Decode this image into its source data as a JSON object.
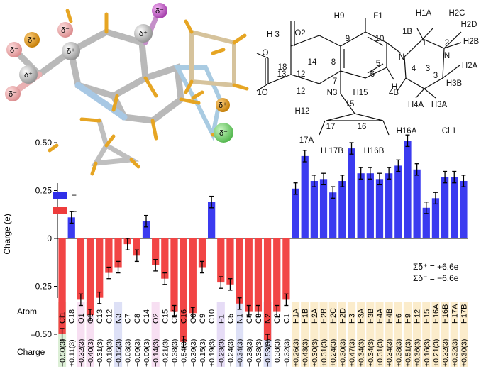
{
  "top_left": {
    "delta_labels": [
      "δ⁻",
      "δ⁻",
      "δ⁺",
      "δ⁺",
      "δ⁻",
      "δ⁺",
      "δ⁻",
      "δ⁺",
      "δ⁺",
      "δ⁻"
    ]
  },
  "scheme": {
    "atoms": [
      "O2",
      "H9",
      "F1",
      "H1A",
      "H2C",
      "H 3",
      "O",
      "14",
      "9",
      "10",
      "1B",
      "1",
      "2",
      "H2D",
      "3",
      "8",
      "N",
      "N",
      "H2B",
      "18",
      "13",
      "7",
      "5",
      "H2A",
      "1O",
      "6",
      "4",
      "3",
      "H3B",
      "12",
      "N3",
      "H15",
      "H",
      "12",
      "15",
      "4B",
      "H4A",
      "H3A",
      "H12",
      "17",
      "16",
      "17A",
      "H16A",
      "Cl 1",
      "H 17B",
      "H16B",
      "6"
    ],
    "charge_superscript": "+"
  },
  "chart_data": {
    "type": "bar",
    "ylabel": "Charge (e)",
    "ylim": [
      -0.6,
      0.6
    ],
    "yticks": [
      "0.50",
      "0.25",
      "0",
      "–0.25",
      "–0.50"
    ],
    "ytick_values": [
      0.5,
      0.25,
      0,
      -0.25,
      -0.5
    ],
    "legend": [
      {
        "label": "+",
        "color": "#2f2fe8"
      },
      {
        "label": "–",
        "color": "#ee3c3c"
      }
    ],
    "annotation": [
      "Σδ⁺ = +6.6e",
      "Σδ⁻ = −6.6e"
    ],
    "row_titles": {
      "atom": "Atom",
      "charge": "Charge"
    },
    "categories": [
      "Cl1",
      "C18",
      "O1",
      "O3",
      "C13",
      "C12",
      "N3",
      "C7",
      "C8",
      "C14",
      "O2",
      "C15",
      "C17",
      "C16",
      "C6",
      "C9",
      "C10",
      "F1",
      "C5",
      "N1",
      "C4",
      "C3",
      "N2",
      "C2",
      "C1",
      "H1A",
      "H1B",
      "H2A",
      "H2B",
      "H2C",
      "H2D",
      "H3",
      "H3A",
      "H3B",
      "H4A",
      "H4B",
      "H6",
      "H9",
      "H12",
      "H15",
      "H16A",
      "H16B",
      "H17A",
      "H17B"
    ],
    "values": [
      -0.5,
      0.11,
      -0.32,
      -0.4,
      -0.31,
      -0.18,
      -0.15,
      -0.03,
      -0.09,
      0.09,
      -0.14,
      -0.21,
      -0.38,
      -0.54,
      -0.39,
      -0.15,
      0.19,
      -0.23,
      -0.24,
      -0.34,
      -0.38,
      -0.38,
      -0.53,
      -0.38,
      -0.32,
      0.26,
      0.43,
      0.3,
      0.31,
      0.24,
      0.3,
      0.47,
      0.34,
      0.34,
      0.31,
      0.34,
      0.38,
      0.51,
      0.36,
      0.16,
      0.21,
      0.32,
      0.32,
      0.3
    ],
    "errors": [
      0.03,
      0.03,
      0.03,
      0.03,
      0.03,
      0.03,
      0.03,
      0.03,
      0.03,
      0.03,
      0.03,
      0.03,
      0.03,
      0.03,
      0.03,
      0.03,
      0.03,
      0.03,
      0.03,
      0.03,
      0.03,
      0.03,
      0.03,
      0.03,
      0.03,
      0.03,
      0.03,
      0.03,
      0.03,
      0.03,
      0.03,
      0.03,
      0.03,
      0.03,
      0.03,
      0.03,
      0.03,
      0.03,
      0.03,
      0.03,
      0.03,
      0.03,
      0.03,
      0.03
    ],
    "charge_labels": [
      "−0.50(3)",
      "+0.11(3)",
      "−0.32(3)",
      "−0.40(3)",
      "−0.31(3)",
      "−0.18(3)",
      "−0.15(3)",
      "−0.03(3)",
      "−0.09(3)",
      "+0.09(3)",
      "−0.14(3)",
      "−0.21(3)",
      "−0.38(3)",
      "−0.54(3)",
      "−0.39(3)",
      "−0.15(3)",
      "+0.19(3)",
      "−0.23(3)",
      "−0.24(3)",
      "−0.34(3)",
      "−0.38(3)",
      "−0.38(3)",
      "−0.53(3)",
      "−0.38(3)",
      "−0.32(3)",
      "+0.26(3)",
      "+0.43(3)",
      "+0.30(3)",
      "+0.31(3)",
      "+0.24(3)",
      "+0.30(3)",
      "+0.47(3)",
      "+0.34(3)",
      "+0.34(3)",
      "+0.31(3)",
      "+0.34(3)",
      "+0.38(3)",
      "+0.51(3)",
      "+0.36(3)",
      "+0.16(3)",
      "+0.21(3)",
      "+0.32(3)",
      "+0.32(3)",
      "+0.30(3)"
    ],
    "band_colors": {
      "Cl": "#dcefd6",
      "O": "#f7dff2",
      "N": "#dde0f6",
      "F": "#e6dcf6",
      "H": "#fbeccb"
    },
    "bar_colors": {
      "pos": "#3b3bf0",
      "neg": "#f24545"
    }
  }
}
